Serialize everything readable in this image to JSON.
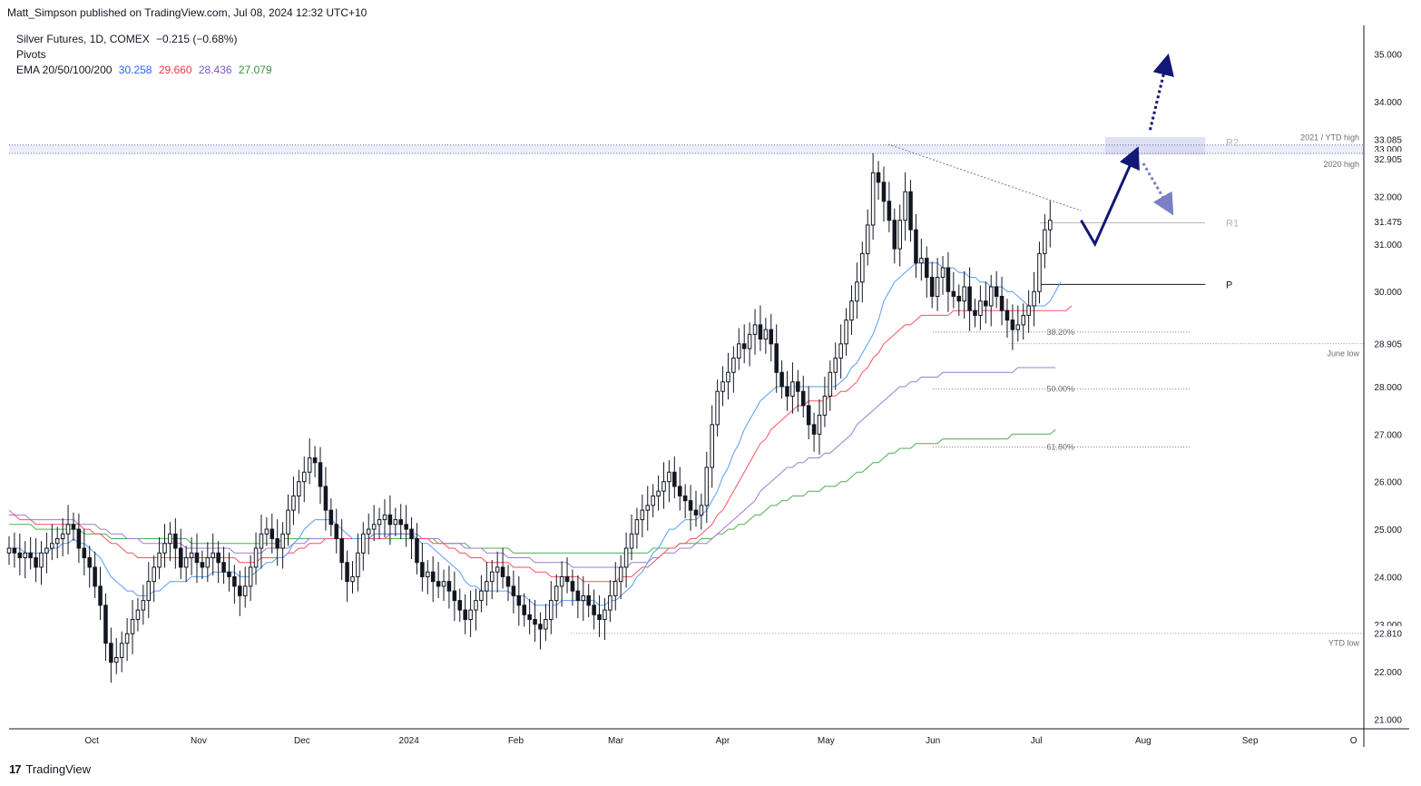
{
  "publisher": "Matt_Simpson published on TradingView.com, Jul 08, 2024 12:32 UTC+10",
  "legend": {
    "title": "Silver Futures, 1D, COMEX",
    "change": "−0.215 (−0.68%)",
    "line2": "Pivots",
    "ema_label": "EMA 20/50/100/200",
    "ema_values": [
      "30.258",
      "29.660",
      "28.436",
      "27.079"
    ]
  },
  "colors": {
    "ema20": "#5b9cf6",
    "ema50": "#f7525f",
    "ema100": "#9c7cd0",
    "ema200": "#4caf50",
    "candle": "#131722",
    "arrow": "#131775",
    "zone": "#d1d4ec"
  },
  "footer": {
    "brand": "TradingView",
    "logo_icon": "tradingview-logo-icon"
  },
  "chart_data": {
    "type": "candlestick",
    "instrument": "Silver Futures",
    "timeframe": "1D",
    "ylim": [
      20.8,
      35.6
    ],
    "y_ticks": [
      "35.000",
      "34.000",
      "33.000",
      "32.000",
      "31.000",
      "30.000",
      "29.000",
      "28.000",
      "27.000",
      "26.000",
      "25.000",
      "24.000",
      "23.000",
      "22.000",
      "21.000"
    ],
    "x_labels": [
      {
        "label": "Oct",
        "day": 15
      },
      {
        "label": "Nov",
        "day": 46
      },
      {
        "label": "Dec",
        "day": 76
      },
      {
        "label": "2024",
        "day": 107
      },
      {
        "label": "Feb",
        "day": 138
      },
      {
        "label": "Mar",
        "day": 167
      },
      {
        "label": "Apr",
        "day": 198
      },
      {
        "label": "May",
        "day": 228
      },
      {
        "label": "Jun",
        "day": 259
      },
      {
        "label": "Jul",
        "day": 289
      },
      {
        "label": "Aug",
        "day": 320
      },
      {
        "label": "Sep",
        "day": 351
      },
      {
        "label": "O",
        "day": 381
      }
    ],
    "x_range_days": [
      -9,
      384
    ],
    "price_labels": [
      {
        "label": "33.085",
        "value": 33.085
      },
      {
        "label": "32.905",
        "value": 32.905
      },
      {
        "label": "31.475",
        "value": 31.475
      },
      {
        "label": "28.905",
        "value": 28.905
      },
      {
        "label": "22.810",
        "value": 22.81
      }
    ],
    "key_levels": [
      {
        "label": "2021 / YTD high",
        "value": 33.085
      },
      {
        "label": "2020 high",
        "value": 32.905
      },
      {
        "label": "June low",
        "value": 28.905
      },
      {
        "label": "YTD low",
        "value": 22.81
      }
    ],
    "fib_levels": [
      {
        "label": "38.20%",
        "value": 29.15
      },
      {
        "label": "50.00%",
        "value": 27.95
      },
      {
        "label": "61.80%",
        "value": 26.73
      }
    ],
    "pivots": [
      {
        "label": "R2",
        "value": 33.15
      },
      {
        "label": "R1",
        "value": 31.45
      },
      {
        "label": "P",
        "value": 30.15
      }
    ],
    "closes": [
      24.6,
      24.5,
      24.4,
      24.5,
      24.4,
      24.2,
      24.5,
      24.6,
      24.7,
      24.8,
      24.9,
      25.1,
      25.0,
      24.6,
      24.4,
      24.2,
      23.8,
      23.4,
      22.6,
      22.2,
      22.3,
      22.6,
      22.8,
      23.1,
      23.3,
      23.5,
      23.9,
      24.2,
      24.5,
      24.7,
      24.9,
      24.6,
      24.2,
      24.4,
      24.5,
      24.3,
      24.2,
      24.4,
      24.5,
      24.3,
      24.1,
      24.0,
      23.8,
      23.6,
      23.8,
      24.2,
      24.6,
      24.9,
      25.0,
      24.8,
      24.6,
      24.9,
      25.4,
      25.7,
      26.0,
      26.2,
      26.5,
      26.4,
      25.9,
      25.4,
      25.1,
      24.8,
      24.3,
      23.9,
      24.0,
      24.5,
      24.9,
      25.0,
      25.1,
      25.2,
      25.3,
      25.1,
      25.2,
      25.1,
      25.0,
      24.8,
      24.3,
      24.0,
      24.1,
      23.9,
      23.8,
      23.9,
      23.7,
      23.5,
      23.3,
      23.1,
      23.3,
      23.5,
      23.7,
      23.9,
      24.1,
      24.2,
      24.0,
      23.8,
      23.6,
      23.4,
      23.2,
      23.1,
      23.0,
      22.9,
      23.1,
      23.5,
      23.8,
      24.0,
      23.9,
      23.7,
      23.5,
      23.6,
      23.4,
      23.2,
      23.1,
      23.3,
      23.6,
      23.9,
      24.2,
      24.6,
      24.9,
      25.2,
      25.4,
      25.5,
      25.7,
      25.8,
      26.0,
      26.2,
      25.9,
      25.7,
      25.6,
      25.4,
      25.3,
      25.5,
      26.3,
      27.2,
      27.9,
      28.1,
      28.3,
      28.6,
      28.9,
      28.8,
      29.1,
      29.3,
      29.0,
      29.2,
      28.9,
      28.3,
      28.0,
      27.8,
      28.1,
      27.9,
      27.6,
      27.2,
      27.0,
      27.4,
      27.8,
      28.3,
      28.6,
      28.9,
      29.4,
      29.8,
      30.2,
      30.8,
      31.4,
      32.5,
      32.3,
      31.9,
      31.5,
      30.9,
      31.5,
      32.1,
      31.3,
      30.6,
      30.7,
      30.3,
      29.9,
      30.3,
      30.5,
      30.0,
      29.9,
      29.8,
      30.1,
      29.6,
      29.5,
      29.8,
      29.7,
      30.1,
      29.9,
      29.6,
      29.4,
      29.2,
      29.3,
      29.5,
      29.7,
      30.0,
      30.8,
      31.3,
      31.5
    ],
    "ema20": [
      24.6,
      24.6,
      24.6,
      24.5,
      24.5,
      24.5,
      24.5,
      24.5,
      24.6,
      24.6,
      24.7,
      24.7,
      24.8,
      24.7,
      24.7,
      24.6,
      24.5,
      24.4,
      24.2,
      24.0,
      23.9,
      23.8,
      23.7,
      23.7,
      23.6,
      23.6,
      23.6,
      23.7,
      23.7,
      23.8,
      23.9,
      23.9,
      23.9,
      23.9,
      24.0,
      24.0,
      24.0,
      24.0,
      24.1,
      24.1,
      24.1,
      24.1,
      24.1,
      24.0,
      24.0,
      24.0,
      24.1,
      24.2,
      24.3,
      24.3,
      24.4,
      24.4,
      24.5,
      24.7,
      24.8,
      25.0,
      25.1,
      25.2,
      25.2,
      25.2,
      25.2,
      25.1,
      25.0,
      24.9,
      24.8,
      24.8,
      24.8,
      24.8,
      24.9,
      24.9,
      24.9,
      24.9,
      24.9,
      24.9,
      24.9,
      24.9,
      24.8,
      24.7,
      24.7,
      24.6,
      24.5,
      24.4,
      24.3,
      24.2,
      24.1,
      23.9,
      23.8,
      23.8,
      23.7,
      23.7,
      23.7,
      23.7,
      23.7,
      23.7,
      23.6,
      23.6,
      23.6,
      23.5,
      23.4,
      23.4,
      23.4,
      23.4,
      23.4,
      23.5,
      23.5,
      23.5,
      23.5,
      23.5,
      23.5,
      23.5,
      23.4,
      23.4,
      23.5,
      23.5,
      23.6,
      23.7,
      23.8,
      24.0,
      24.1,
      24.3,
      24.5,
      24.6,
      24.8,
      25.0,
      25.0,
      25.1,
      25.2,
      25.2,
      25.2,
      25.3,
      25.4,
      25.6,
      25.8,
      26.1,
      26.3,
      26.6,
      26.8,
      27.1,
      27.3,
      27.5,
      27.7,
      27.8,
      27.9,
      28.0,
      28.0,
      28.0,
      28.0,
      28.0,
      28.0,
      28.0,
      28.0,
      28.0,
      28.0,
      28.0,
      28.0,
      28.1,
      28.2,
      28.4,
      28.5,
      28.7,
      28.9,
      29.1,
      29.4,
      29.8,
      30.0,
      30.2,
      30.3,
      30.4,
      30.5,
      30.6,
      30.6,
      30.6,
      30.6,
      30.6,
      30.5,
      30.5,
      30.5,
      30.4,
      30.4,
      30.3,
      30.3,
      30.2,
      30.2,
      30.1,
      30.1,
      30.1,
      30.0,
      30.0,
      29.9,
      29.8,
      29.7,
      29.7,
      29.7,
      29.7,
      29.8,
      30.0,
      30.2
    ],
    "ema50": [
      25.3,
      25.3,
      25.2,
      25.2,
      25.2,
      25.1,
      25.1,
      25.1,
      25.1,
      25.1,
      25.1,
      25.1,
      25.1,
      25.1,
      25.0,
      25.0,
      24.9,
      24.9,
      24.8,
      24.7,
      24.7,
      24.6,
      24.5,
      24.5,
      24.4,
      24.4,
      24.4,
      24.4,
      24.4,
      24.4,
      24.4,
      24.4,
      24.4,
      24.4,
      24.4,
      24.4,
      24.4,
      24.4,
      24.4,
      24.4,
      24.4,
      24.4,
      24.4,
      24.3,
      24.3,
      24.3,
      24.3,
      24.4,
      24.4,
      24.4,
      24.4,
      24.4,
      24.5,
      24.5,
      24.6,
      24.6,
      24.7,
      24.7,
      24.7,
      24.8,
      24.8,
      24.8,
      24.8,
      24.8,
      24.8,
      24.8,
      24.8,
      24.8,
      24.8,
      24.8,
      24.8,
      24.9,
      24.9,
      24.9,
      24.9,
      24.9,
      24.8,
      24.8,
      24.8,
      24.7,
      24.7,
      24.7,
      24.6,
      24.6,
      24.5,
      24.5,
      24.4,
      24.4,
      24.4,
      24.3,
      24.3,
      24.3,
      24.3,
      24.3,
      24.2,
      24.2,
      24.2,
      24.2,
      24.1,
      24.1,
      24.1,
      24.0,
      24.0,
      24.0,
      24.0,
      24.0,
      24.0,
      23.9,
      23.9,
      23.9,
      23.9,
      23.9,
      23.9,
      23.9,
      24.0,
      24.0,
      24.0,
      24.1,
      24.2,
      24.2,
      24.3,
      24.4,
      24.5,
      24.6,
      24.6,
      24.7,
      24.7,
      24.8,
      24.8,
      24.9,
      25.0,
      25.1,
      25.3,
      25.4,
      25.6,
      25.8,
      26.0,
      26.2,
      26.4,
      26.6,
      26.8,
      26.9,
      27.1,
      27.2,
      27.3,
      27.4,
      27.5,
      27.6,
      27.6,
      27.7,
      27.7,
      27.7,
      27.7,
      27.8,
      27.8,
      27.9,
      27.9,
      28.0,
      28.1,
      28.3,
      28.4,
      28.6,
      28.7,
      28.9,
      29.0,
      29.1,
      29.2,
      29.3,
      29.3,
      29.4,
      29.5,
      29.5,
      29.5,
      29.5,
      29.5,
      29.5,
      29.6,
      29.6,
      29.6,
      29.6,
      29.6,
      29.6,
      29.6,
      29.6,
      29.6,
      29.6,
      29.6,
      29.6,
      29.6,
      29.6,
      29.6,
      29.6,
      29.6,
      29.6,
      29.6,
      29.6,
      29.6,
      29.6,
      29.7
    ],
    "ema100": [
      25.4,
      25.3,
      25.3,
      25.3,
      25.2,
      25.2,
      25.2,
      25.2,
      25.2,
      25.2,
      25.2,
      25.2,
      25.2,
      25.1,
      25.1,
      25.1,
      25.1,
      25.0,
      25.0,
      24.9,
      24.9,
      24.9,
      24.8,
      24.8,
      24.8,
      24.7,
      24.7,
      24.7,
      24.7,
      24.7,
      24.7,
      24.7,
      24.7,
      24.6,
      24.6,
      24.6,
      24.6,
      24.6,
      24.6,
      24.6,
      24.6,
      24.6,
      24.5,
      24.5,
      24.5,
      24.5,
      24.5,
      24.5,
      24.6,
      24.6,
      24.6,
      24.6,
      24.6,
      24.7,
      24.7,
      24.7,
      24.8,
      24.8,
      24.8,
      24.8,
      24.8,
      24.8,
      24.8,
      24.8,
      24.8,
      24.8,
      24.8,
      24.8,
      24.9,
      24.9,
      24.9,
      24.9,
      24.9,
      24.9,
      24.9,
      24.9,
      24.9,
      24.8,
      24.8,
      24.8,
      24.8,
      24.7,
      24.7,
      24.7,
      24.7,
      24.6,
      24.6,
      24.6,
      24.6,
      24.5,
      24.5,
      24.5,
      24.5,
      24.4,
      24.4,
      24.4,
      24.4,
      24.4,
      24.3,
      24.3,
      24.3,
      24.3,
      24.3,
      24.3,
      24.3,
      24.2,
      24.2,
      24.2,
      24.2,
      24.2,
      24.2,
      24.2,
      24.2,
      24.2,
      24.2,
      24.2,
      24.3,
      24.3,
      24.3,
      24.3,
      24.4,
      24.4,
      24.5,
      24.5,
      24.5,
      24.6,
      24.6,
      24.6,
      24.7,
      24.7,
      24.7,
      24.8,
      24.9,
      25.0,
      25.1,
      25.2,
      25.3,
      25.4,
      25.5,
      25.6,
      25.8,
      25.9,
      26.0,
      26.1,
      26.2,
      26.3,
      26.3,
      26.4,
      26.4,
      26.5,
      26.5,
      26.5,
      26.6,
      26.6,
      26.7,
      26.8,
      26.9,
      27.0,
      27.2,
      27.3,
      27.4,
      27.5,
      27.6,
      27.7,
      27.8,
      27.9,
      28.0,
      28.0,
      28.1,
      28.1,
      28.2,
      28.2,
      28.2,
      28.2,
      28.3,
      28.3,
      28.3,
      28.3,
      28.3,
      28.3,
      28.3,
      28.3,
      28.3,
      28.3,
      28.3,
      28.3,
      28.3,
      28.3,
      28.4,
      28.4,
      28.4,
      28.4,
      28.4,
      28.4,
      28.4,
      28.4
    ],
    "ema200": [
      25.1,
      25.1,
      25.1,
      25.1,
      25.1,
      25.0,
      25.0,
      25.0,
      25.0,
      25.0,
      25.0,
      25.0,
      25.0,
      25.0,
      24.9,
      24.9,
      24.9,
      24.9,
      24.9,
      24.8,
      24.8,
      24.8,
      24.8,
      24.8,
      24.8,
      24.8,
      24.8,
      24.8,
      24.8,
      24.8,
      24.8,
      24.8,
      24.8,
      24.8,
      24.7,
      24.7,
      24.7,
      24.7,
      24.7,
      24.7,
      24.7,
      24.7,
      24.7,
      24.7,
      24.7,
      24.7,
      24.7,
      24.7,
      24.7,
      24.7,
      24.7,
      24.8,
      24.8,
      24.8,
      24.8,
      24.8,
      24.8,
      24.8,
      24.8,
      24.8,
      24.8,
      24.8,
      24.8,
      24.8,
      24.8,
      24.8,
      24.8,
      24.8,
      24.8,
      24.8,
      24.8,
      24.8,
      24.8,
      24.8,
      24.8,
      24.8,
      24.8,
      24.8,
      24.8,
      24.8,
      24.7,
      24.7,
      24.7,
      24.7,
      24.7,
      24.7,
      24.6,
      24.6,
      24.6,
      24.6,
      24.6,
      24.6,
      24.6,
      24.6,
      24.5,
      24.5,
      24.5,
      24.5,
      24.5,
      24.5,
      24.5,
      24.5,
      24.5,
      24.5,
      24.5,
      24.5,
      24.5,
      24.5,
      24.5,
      24.5,
      24.5,
      24.5,
      24.5,
      24.5,
      24.5,
      24.5,
      24.5,
      24.5,
      24.5,
      24.5,
      24.6,
      24.6,
      24.6,
      24.6,
      24.6,
      24.7,
      24.7,
      24.7,
      24.7,
      24.8,
      24.8,
      24.8,
      24.9,
      24.9,
      25.0,
      25.0,
      25.1,
      25.1,
      25.2,
      25.3,
      25.3,
      25.4,
      25.5,
      25.5,
      25.6,
      25.6,
      25.7,
      25.7,
      25.7,
      25.8,
      25.8,
      25.8,
      25.9,
      25.9,
      25.9,
      26.0,
      26.0,
      26.1,
      26.2,
      26.2,
      26.3,
      26.4,
      26.4,
      26.5,
      26.6,
      26.6,
      26.7,
      26.7,
      26.7,
      26.8,
      26.8,
      26.8,
      26.8,
      26.8,
      26.9,
      26.9,
      26.9,
      26.9,
      26.9,
      26.9,
      26.9,
      26.9,
      26.9,
      26.9,
      26.9,
      26.9,
      26.9,
      27.0,
      27.0,
      27.0,
      27.0,
      27.0,
      27.0,
      27.0,
      27.0,
      27.1
    ]
  }
}
